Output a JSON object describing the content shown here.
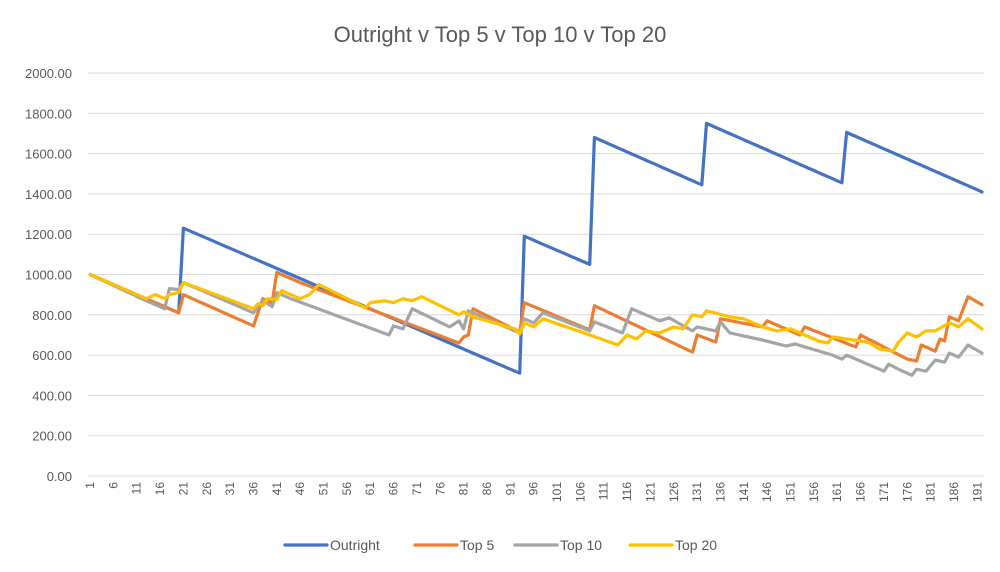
{
  "chart_data": {
    "type": "line",
    "title": "Outright v Top 5 v Top 10 v Top 20",
    "xlabel": "",
    "ylabel": "",
    "ylim": [
      0,
      2000
    ],
    "yticks": [
      0,
      200,
      400,
      600,
      800,
      1000,
      1200,
      1400,
      1600,
      1800,
      2000
    ],
    "ytick_labels": [
      "0.00",
      "200.00",
      "400.00",
      "600.00",
      "800.00",
      "1000.00",
      "1200.00",
      "1400.00",
      "1600.00",
      "1800.00",
      "2000.00"
    ],
    "x_count": 192,
    "xtick_labels": [
      "1",
      "6",
      "11",
      "16",
      "21",
      "26",
      "31",
      "36",
      "41",
      "46",
      "51",
      "56",
      "61",
      "66",
      "71",
      "76",
      "81",
      "86",
      "91",
      "96",
      "101",
      "106",
      "111",
      "116",
      "121",
      "126",
      "131",
      "136",
      "141",
      "146",
      "151",
      "156",
      "161",
      "166",
      "171",
      "176",
      "181",
      "186",
      "191"
    ],
    "grid": true,
    "legend": "bottom",
    "series_note": "values given as keyframes [x, y]; intermediate points are linear",
    "series": [
      {
        "name": "Outright",
        "color": "#4472c4",
        "keyframes": [
          [
            1,
            1000
          ],
          [
            20,
            810
          ],
          [
            21,
            1230
          ],
          [
            93,
            510
          ],
          [
            94,
            1190
          ],
          [
            108,
            1050
          ],
          [
            109,
            1680
          ],
          [
            132,
            1445
          ],
          [
            133,
            1750
          ],
          [
            162,
            1455
          ],
          [
            163,
            1705
          ],
          [
            192,
            1410
          ]
        ]
      },
      {
        "name": "Top 5",
        "color": "#ed7d31",
        "keyframes": [
          [
            1,
            1000
          ],
          [
            16,
            850
          ],
          [
            20,
            810
          ],
          [
            21,
            900
          ],
          [
            36,
            745
          ],
          [
            38,
            880
          ],
          [
            40,
            860
          ],
          [
            41,
            1010
          ],
          [
            46,
            960
          ],
          [
            80,
            660
          ],
          [
            81,
            690
          ],
          [
            82,
            700
          ],
          [
            83,
            830
          ],
          [
            93,
            715
          ],
          [
            94,
            860
          ],
          [
            108,
            725
          ],
          [
            109,
            845
          ],
          [
            130,
            615
          ],
          [
            131,
            700
          ],
          [
            135,
            665
          ],
          [
            136,
            780
          ],
          [
            145,
            740
          ],
          [
            146,
            770
          ],
          [
            153,
            700
          ],
          [
            154,
            740
          ],
          [
            165,
            640
          ],
          [
            166,
            700
          ],
          [
            176,
            580
          ],
          [
            178,
            570
          ],
          [
            179,
            650
          ],
          [
            182,
            620
          ],
          [
            183,
            680
          ],
          [
            184,
            670
          ],
          [
            185,
            790
          ],
          [
            187,
            770
          ],
          [
            189,
            890
          ],
          [
            192,
            850
          ]
        ]
      },
      {
        "name": "Top 10",
        "color": "#a5a5a5",
        "keyframes": [
          [
            1,
            1000
          ],
          [
            13,
            870
          ],
          [
            17,
            830
          ],
          [
            18,
            930
          ],
          [
            20,
            925
          ],
          [
            21,
            960
          ],
          [
            36,
            810
          ],
          [
            38,
            870
          ],
          [
            40,
            840
          ],
          [
            41,
            910
          ],
          [
            44,
            880
          ],
          [
            65,
            700
          ],
          [
            66,
            745
          ],
          [
            68,
            730
          ],
          [
            70,
            830
          ],
          [
            78,
            740
          ],
          [
            80,
            770
          ],
          [
            81,
            730
          ],
          [
            82,
            820
          ],
          [
            93,
            710
          ],
          [
            94,
            780
          ],
          [
            96,
            760
          ],
          [
            98,
            810
          ],
          [
            108,
            720
          ],
          [
            109,
            765
          ],
          [
            115,
            710
          ],
          [
            117,
            830
          ],
          [
            123,
            770
          ],
          [
            125,
            785
          ],
          [
            130,
            720
          ],
          [
            131,
            740
          ],
          [
            135,
            720
          ],
          [
            136,
            765
          ],
          [
            138,
            710
          ],
          [
            145,
            675
          ],
          [
            150,
            645
          ],
          [
            152,
            655
          ],
          [
            160,
            600
          ],
          [
            162,
            580
          ],
          [
            163,
            600
          ],
          [
            171,
            520
          ],
          [
            172,
            555
          ],
          [
            175,
            520
          ],
          [
            177,
            500
          ],
          [
            178,
            530
          ],
          [
            180,
            520
          ],
          [
            182,
            575
          ],
          [
            184,
            565
          ],
          [
            185,
            610
          ],
          [
            187,
            590
          ],
          [
            189,
            650
          ],
          [
            192,
            610
          ]
        ]
      },
      {
        "name": "Top 20",
        "color": "#ffc000",
        "keyframes": [
          [
            1,
            1000
          ],
          [
            13,
            880
          ],
          [
            15,
            900
          ],
          [
            17,
            880
          ],
          [
            18,
            900
          ],
          [
            20,
            910
          ],
          [
            21,
            960
          ],
          [
            36,
            830
          ],
          [
            37,
            855
          ],
          [
            38,
            845
          ],
          [
            39,
            880
          ],
          [
            41,
            875
          ],
          [
            42,
            920
          ],
          [
            46,
            880
          ],
          [
            48,
            900
          ],
          [
            50,
            950
          ],
          [
            60,
            835
          ],
          [
            61,
            860
          ],
          [
            64,
            870
          ],
          [
            66,
            860
          ],
          [
            68,
            880
          ],
          [
            70,
            870
          ],
          [
            72,
            890
          ],
          [
            80,
            800
          ],
          [
            81,
            815
          ],
          [
            83,
            790
          ],
          [
            92,
            730
          ],
          [
            93,
            705
          ],
          [
            94,
            760
          ],
          [
            96,
            740
          ],
          [
            98,
            780
          ],
          [
            108,
            700
          ],
          [
            114,
            650
          ],
          [
            116,
            700
          ],
          [
            118,
            680
          ],
          [
            120,
            720
          ],
          [
            123,
            710
          ],
          [
            126,
            740
          ],
          [
            128,
            730
          ],
          [
            130,
            800
          ],
          [
            132,
            790
          ],
          [
            133,
            820
          ],
          [
            138,
            790
          ],
          [
            141,
            780
          ],
          [
            145,
            740
          ],
          [
            148,
            720
          ],
          [
            151,
            730
          ],
          [
            157,
            670
          ],
          [
            159,
            660
          ],
          [
            160,
            690
          ],
          [
            163,
            680
          ],
          [
            166,
            670
          ],
          [
            168,
            660
          ],
          [
            170,
            630
          ],
          [
            173,
            620
          ],
          [
            174,
            660
          ],
          [
            176,
            710
          ],
          [
            178,
            690
          ],
          [
            180,
            720
          ],
          [
            182,
            720
          ],
          [
            185,
            760
          ],
          [
            187,
            740
          ],
          [
            189,
            780
          ],
          [
            192,
            730
          ]
        ]
      }
    ]
  }
}
